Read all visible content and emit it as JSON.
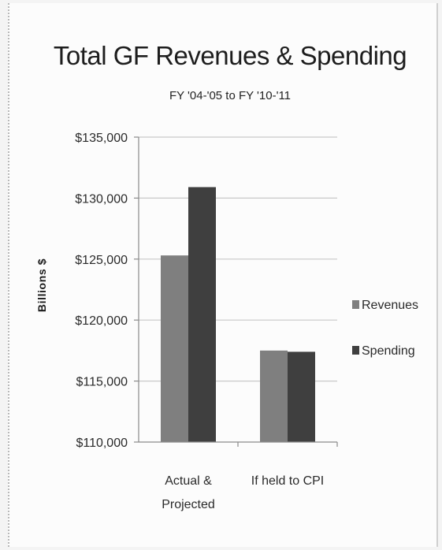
{
  "chart_data": {
    "type": "bar",
    "title": "Total GF Revenues & Spending",
    "subtitle": "FY '04-'05 to FY '10-'11",
    "xlabel": "",
    "ylabel": "Billions $",
    "categories": [
      [
        "Actual &",
        "Projected"
      ],
      [
        "If held to CPI"
      ]
    ],
    "series": [
      {
        "name": "Revenues",
        "color": "#7f7f7f",
        "values": [
          125300,
          117500
        ]
      },
      {
        "name": "Spending",
        "color": "#3f3f3f",
        "values": [
          130900,
          117400
        ]
      }
    ],
    "ylim": [
      110000,
      135000
    ],
    "yticks": [
      {
        "value": 135000,
        "label": "$135,000"
      },
      {
        "value": 130000,
        "label": "$130,000"
      },
      {
        "value": 125000,
        "label": "$125,000"
      },
      {
        "value": 120000,
        "label": "$120,000"
      },
      {
        "value": 115000,
        "label": "$115,000"
      },
      {
        "value": 110000,
        "label": "$110,000"
      }
    ],
    "grid": true,
    "legend_position": "right"
  }
}
